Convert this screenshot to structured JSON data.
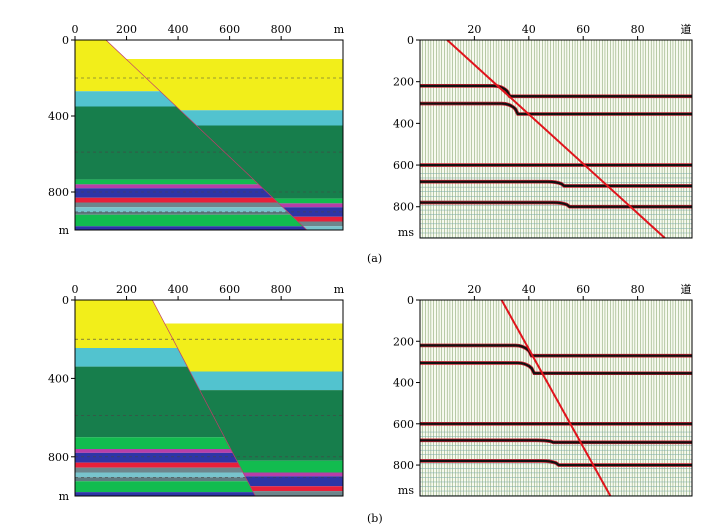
{
  "figure": {
    "panels": [
      {
        "id": "a",
        "caption": "(a)",
        "model": {
          "x_unit": "m",
          "x_ticks": [
            "0",
            "200",
            "400",
            "600",
            "800"
          ],
          "y_unit": "m",
          "y_ticks": [
            "0",
            "400",
            "800"
          ],
          "x_range": [
            0,
            1040
          ],
          "y_range": [
            0,
            1000
          ],
          "fault": {
            "x_top": 120,
            "x_bottom": 900
          },
          "layers": [
            {
              "name": "yellow-layer",
              "color": "#f2ee1a",
              "top": 0,
              "bottom": 270,
              "throw": 100
            },
            {
              "name": "cyan-layer",
              "color": "#52c3cf",
              "top": 270,
              "bottom": 350,
              "throw": 100
            },
            {
              "name": "green-layer-upper",
              "color": "#177e4c",
              "top": 350,
              "bottom": 735,
              "throw": 100
            },
            {
              "name": "light-green-band",
              "color": "#12bc4f",
              "top": 735,
              "bottom": 760,
              "throw": 100
            },
            {
              "name": "magenta-band",
              "color": "#b73ea8",
              "top": 760,
              "bottom": 780,
              "throw": 100
            },
            {
              "name": "blue-band",
              "color": "#2e35a6",
              "top": 780,
              "bottom": 830,
              "throw": 100
            },
            {
              "name": "red-band",
              "color": "#e8203a",
              "top": 830,
              "bottom": 855,
              "throw": 100
            },
            {
              "name": "grey-band-1",
              "color": "#6c868c",
              "top": 855,
              "bottom": 880,
              "throw": 100
            },
            {
              "name": "cyan-band",
              "color": "#78c4cc",
              "top": 880,
              "bottom": 905,
              "throw": 100
            },
            {
              "name": "grey-band-2",
              "color": "#5e7b80",
              "top": 905,
              "bottom": 920,
              "throw": 100
            },
            {
              "name": "green-band-lower",
              "color": "#12bc4f",
              "top": 920,
              "bottom": 980,
              "throw": 100
            },
            {
              "name": "blue-band-lower",
              "color": "#2e35a6",
              "top": 980,
              "bottom": 1020,
              "throw": 100
            },
            {
              "name": "green-base",
              "color": "#177e4c",
              "top": 1020,
              "bottom": 1100,
              "throw": 100
            }
          ]
        },
        "seismic": {
          "x_unit": "道",
          "x_ticks": [
            "20",
            "40",
            "60",
            "80"
          ],
          "x_range": [
            0,
            100
          ],
          "y_unit": "ms",
          "y_ticks": [
            "0",
            "200",
            "400",
            "600",
            "800"
          ],
          "y_range": [
            0,
            950
          ],
          "events": [
            {
              "t_left": 220,
              "t_right": 270,
              "break_trace": 30
            },
            {
              "t_left": 305,
              "t_right": 355,
              "break_trace": 33
            },
            {
              "t_left": 600,
              "t_right": 600,
              "break_trace": 56
            },
            {
              "t_left": 680,
              "t_right": 700,
              "break_trace": 50
            },
            {
              "t_left": 780,
              "t_right": 800,
              "break_trace": 52
            }
          ],
          "diffraction_line": {
            "trace_start": 10,
            "trace_end": 90
          }
        }
      },
      {
        "id": "b",
        "caption": "(b)",
        "model": {
          "x_unit": "m",
          "x_ticks": [
            "0",
            "200",
            "400",
            "600",
            "800"
          ],
          "y_unit": "m",
          "y_ticks": [
            "0",
            "400",
            "800"
          ],
          "x_range": [
            0,
            1040
          ],
          "y_range": [
            0,
            1000
          ],
          "fault": {
            "x_top": 300,
            "x_bottom": 700
          },
          "layers": [
            {
              "name": "yellow-layer",
              "color": "#f2ee1a",
              "top": 0,
              "bottom": 245,
              "throw": 120
            },
            {
              "name": "cyan-layer",
              "color": "#52c3cf",
              "top": 245,
              "bottom": 340,
              "throw": 120
            },
            {
              "name": "green-layer-upper",
              "color": "#177e4c",
              "top": 340,
              "bottom": 700,
              "throw": 120
            },
            {
              "name": "light-green-band",
              "color": "#12bc4f",
              "top": 700,
              "bottom": 760,
              "throw": 120
            },
            {
              "name": "magenta-band",
              "color": "#b73ea8",
              "top": 760,
              "bottom": 780,
              "throw": 120
            },
            {
              "name": "blue-band",
              "color": "#2e35a6",
              "top": 780,
              "bottom": 830,
              "throw": 120
            },
            {
              "name": "red-band",
              "color": "#e8203a",
              "top": 830,
              "bottom": 855,
              "throw": 120
            },
            {
              "name": "grey-band-1",
              "color": "#6c868c",
              "top": 855,
              "bottom": 880,
              "throw": 120
            },
            {
              "name": "cyan-band",
              "color": "#78c4cc",
              "top": 880,
              "bottom": 905,
              "throw": 120
            },
            {
              "name": "grey-band-2",
              "color": "#5e7b80",
              "top": 905,
              "bottom": 925,
              "throw": 120
            },
            {
              "name": "green-band-lower",
              "color": "#12bc4f",
              "top": 925,
              "bottom": 980,
              "throw": 120
            },
            {
              "name": "blue-band-lower",
              "color": "#2e35a6",
              "top": 980,
              "bottom": 1030,
              "throw": 120
            },
            {
              "name": "green-base",
              "color": "#177e4c",
              "top": 1030,
              "bottom": 1150,
              "throw": 120
            }
          ]
        },
        "seismic": {
          "x_unit": "道",
          "x_ticks": [
            "20",
            "40",
            "60",
            "80"
          ],
          "x_range": [
            0,
            100
          ],
          "y_unit": "ms",
          "y_ticks": [
            "0",
            "200",
            "400",
            "600",
            "800"
          ],
          "y_range": [
            0,
            950
          ],
          "events": [
            {
              "t_left": 220,
              "t_right": 270,
              "break_trace": 38
            },
            {
              "t_left": 305,
              "t_right": 355,
              "break_trace": 39
            },
            {
              "t_left": 600,
              "t_right": 600,
              "break_trace": 45
            },
            {
              "t_left": 680,
              "t_right": 690,
              "break_trace": 46
            },
            {
              "t_left": 780,
              "t_right": 800,
              "break_trace": 48
            }
          ],
          "diffraction_line": {
            "trace_start": 30,
            "trace_end": 70
          }
        }
      }
    ]
  }
}
